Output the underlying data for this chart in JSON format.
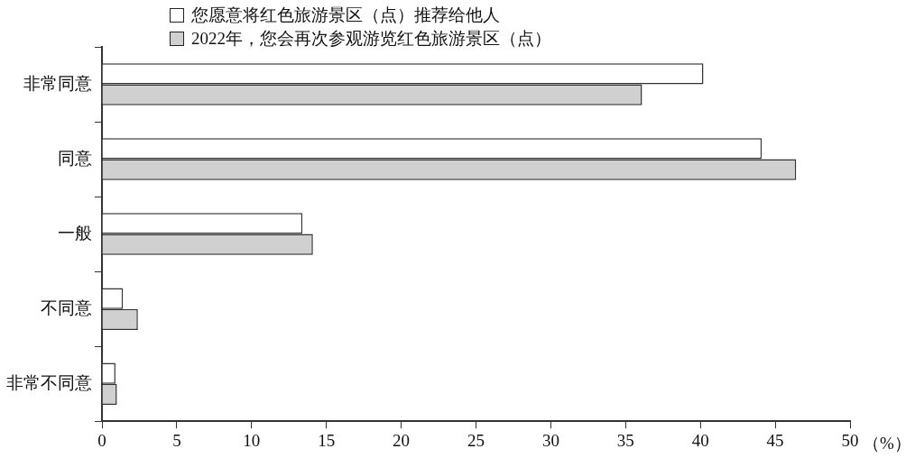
{
  "chart_data": {
    "type": "bar",
    "orientation": "horizontal",
    "xlabel": "（%）",
    "categories": [
      "非常同意",
      "同意",
      "一般",
      "不同意",
      "非常不同意"
    ],
    "series": [
      {
        "name": "您愿意将红色旅游景区（点）推荐给他人",
        "color": "#ffffff",
        "values": [
          40.2,
          44.1,
          13.4,
          1.4,
          0.9
        ]
      },
      {
        "name": "2022年，您会再次参观游览红色旅游景区（点）",
        "color": "#d0d0d0",
        "values": [
          36.1,
          46.4,
          14.1,
          2.4,
          1.0
        ]
      }
    ],
    "xlim": [
      0,
      50
    ],
    "xticks": [
      0,
      5,
      10,
      15,
      20,
      25,
      30,
      35,
      40,
      45,
      50
    ],
    "grid": false,
    "legend": "top"
  }
}
